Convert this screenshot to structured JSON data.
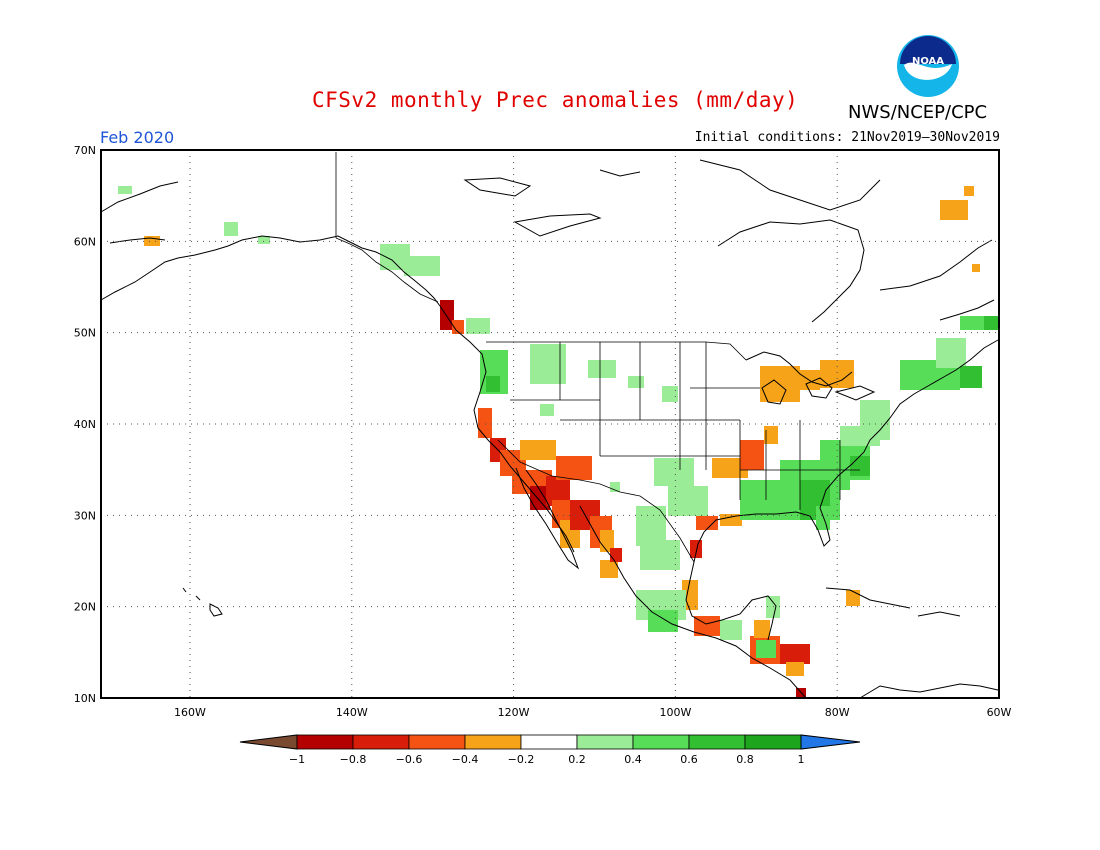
{
  "title": "CFSv2 monthly Prec anomalies (mm/day)",
  "valid_month": "Feb 2020",
  "initial_conditions": "Initial conditions: 21Nov2019–30Nov2019",
  "agency": "NWS/NCEP/CPC",
  "logo_text": "NOAA",
  "map": {
    "lon_range": [
      -171,
      -60
    ],
    "lat_range": [
      10,
      70
    ],
    "lat_ticks": [
      "70N",
      "60N",
      "50N",
      "40N",
      "30N",
      "20N",
      "10N"
    ],
    "lon_ticks": [
      "160W",
      "140W",
      "120W",
      "100W",
      "80W",
      "60W"
    ],
    "grid": true
  },
  "legend": {
    "labels": [
      "−1",
      "−0.8",
      "−0.6",
      "−0.4",
      "−0.2",
      "0.2",
      "0.4",
      "0.6",
      "0.8",
      "1"
    ],
    "colors": {
      "below_neg1": "#7a4a30",
      "neg1_neg08": "#b40000",
      "neg08_neg06": "#d81e0a",
      "neg06_neg04": "#f55314",
      "neg04_neg02": "#f7a31a",
      "neg02_02": "#ffffff",
      "p02_04": "#9bec96",
      "p04_06": "#58dd58",
      "p06_08": "#32bf32",
      "p08_1": "#1ea51e",
      "above_1": "#2276e6"
    }
  }
}
